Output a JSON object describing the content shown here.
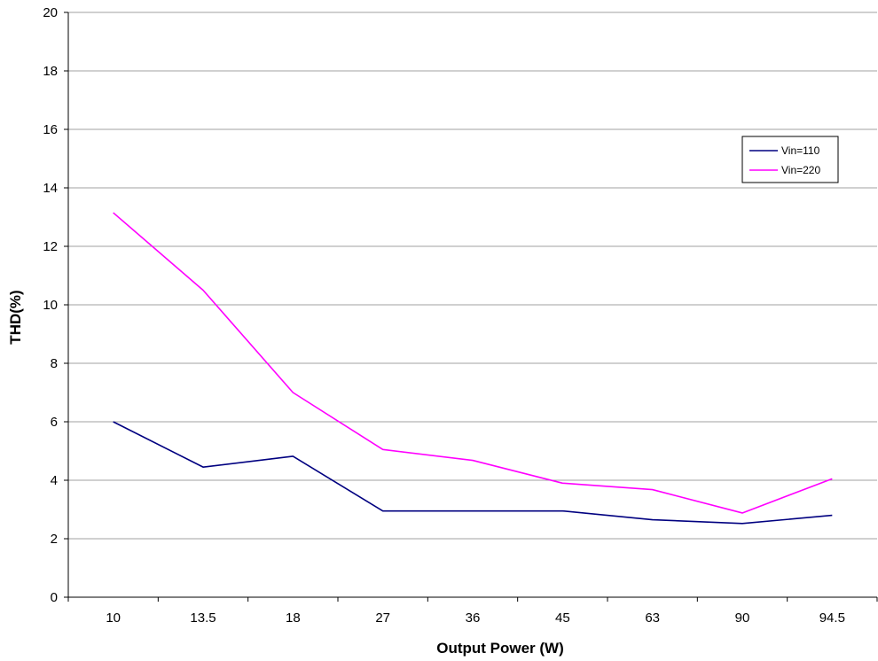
{
  "chart_data": {
    "type": "line",
    "categories": [
      "10",
      "13.5",
      "18",
      "27",
      "36",
      "45",
      "63",
      "90",
      "94.5"
    ],
    "series": [
      {
        "name": "Vin=110",
        "color": "#000080",
        "values": [
          6.0,
          4.45,
          4.82,
          2.95,
          2.95,
          2.95,
          2.65,
          2.52,
          2.8
        ]
      },
      {
        "name": "Vin=220",
        "color": "#ff00ff",
        "values": [
          13.15,
          10.5,
          7.0,
          5.05,
          4.68,
          3.9,
          3.68,
          2.88,
          4.05
        ]
      }
    ],
    "title": "",
    "xlabel": "Output Power (W)",
    "ylabel": "THD(%)",
    "ylim": [
      0,
      20
    ],
    "yticks": [
      "0",
      "2",
      "4",
      "6",
      "8",
      "10",
      "12",
      "14",
      "16",
      "18",
      "20"
    ],
    "grid": "horizontal",
    "legend_position": "right"
  }
}
